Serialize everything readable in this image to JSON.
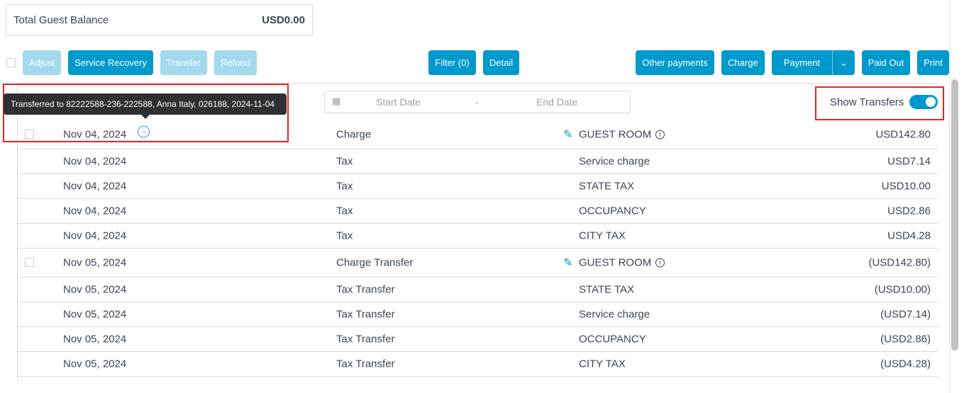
{
  "balance": {
    "label": "Total Guest Balance",
    "value": "USD0.00"
  },
  "toolbar": {
    "adjust": "Adjust",
    "service_recovery": "Service Recovery",
    "transfer": "Transfer",
    "refund": "Refund",
    "filter": "Filter (0)",
    "detail": "Detail",
    "other_payments": "Other payments",
    "charge": "Charge",
    "payment": "Payment",
    "paid_out": "Paid Out",
    "print": "Print"
  },
  "filters": {
    "start_placeholder": "Start Date",
    "separator": "-",
    "end_placeholder": "End Date",
    "show_transfers_label": "Show Transfers",
    "show_transfers": true
  },
  "tooltip": "Transferred to 82222588-236-222588, Anna Italy, 026188, 2024-11-04",
  "colors": {
    "primary": "#0099cc",
    "disabled": "#a3d9ec",
    "highlight": "#e8231f"
  },
  "rows": [
    {
      "date": "Nov 04, 2024",
      "type": "Charge",
      "description": "GUEST ROOM",
      "amount": "USD142.80",
      "group": true
    },
    {
      "date": "Nov 04, 2024",
      "type": "Tax",
      "description": "Service charge",
      "amount": "USD7.14"
    },
    {
      "date": "Nov 04, 2024",
      "type": "Tax",
      "description": "STATE TAX",
      "amount": "USD10.00"
    },
    {
      "date": "Nov 04, 2024",
      "type": "Tax",
      "description": "OCCUPANCY",
      "amount": "USD2.86"
    },
    {
      "date": "Nov 04, 2024",
      "type": "Tax",
      "description": "CITY TAX",
      "amount": "USD4.28"
    },
    {
      "date": "Nov 05, 2024",
      "type": "Charge Transfer",
      "description": "GUEST ROOM",
      "amount": "(USD142.80)",
      "group": true
    },
    {
      "date": "Nov 05, 2024",
      "type": "Tax Transfer",
      "description": "STATE TAX",
      "amount": "(USD10.00)"
    },
    {
      "date": "Nov 05, 2024",
      "type": "Tax Transfer",
      "description": "Service charge",
      "amount": "(USD7.14)"
    },
    {
      "date": "Nov 05, 2024",
      "type": "Tax Transfer",
      "description": "OCCUPANCY",
      "amount": "(USD2.86)"
    },
    {
      "date": "Nov 05, 2024",
      "type": "Tax Transfer",
      "description": "CITY TAX",
      "amount": "(USD4.28)"
    }
  ]
}
